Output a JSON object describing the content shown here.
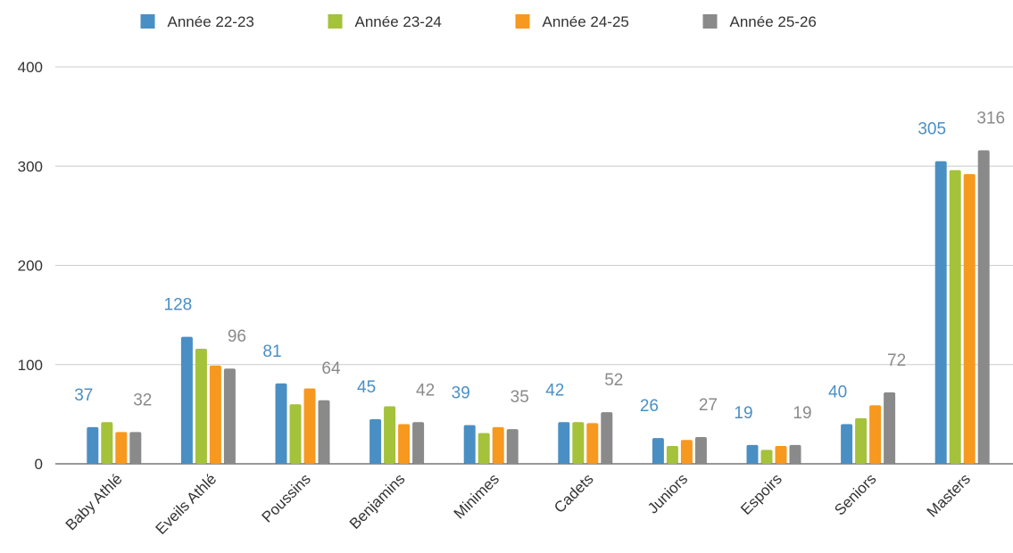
{
  "chart_data": {
    "type": "bar",
    "categories": [
      "Baby Athlé",
      "Eveils Athlé",
      "Poussins",
      "Benjamins",
      "Minimes",
      "Cadets",
      "Juniors",
      "Espoirs",
      "Seniors",
      "Masters"
    ],
    "series": [
      {
        "name": "Année 22-23",
        "color": "#4a8fc4",
        "values": [
          37,
          128,
          81,
          45,
          39,
          42,
          26,
          19,
          40,
          305
        ],
        "labeled": true
      },
      {
        "name": "Année 23-24",
        "color": "#a4c23a",
        "values": [
          42,
          116,
          60,
          58,
          31,
          42,
          18,
          14,
          46,
          296
        ],
        "labeled": false
      },
      {
        "name": "Année 24-25",
        "color": "#f7981f",
        "values": [
          32,
          99,
          76,
          40,
          37,
          41,
          24,
          18,
          59,
          292
        ],
        "labeled": false
      },
      {
        "name": "Année 25-26",
        "color": "#8a8a8a",
        "values": [
          32,
          96,
          64,
          42,
          35,
          52,
          27,
          19,
          72,
          316
        ],
        "labeled": true
      }
    ],
    "ylim": [
      0,
      400
    ],
    "yticks": [
      0,
      100,
      200,
      300,
      400
    ],
    "grid": true,
    "legend": "top"
  }
}
